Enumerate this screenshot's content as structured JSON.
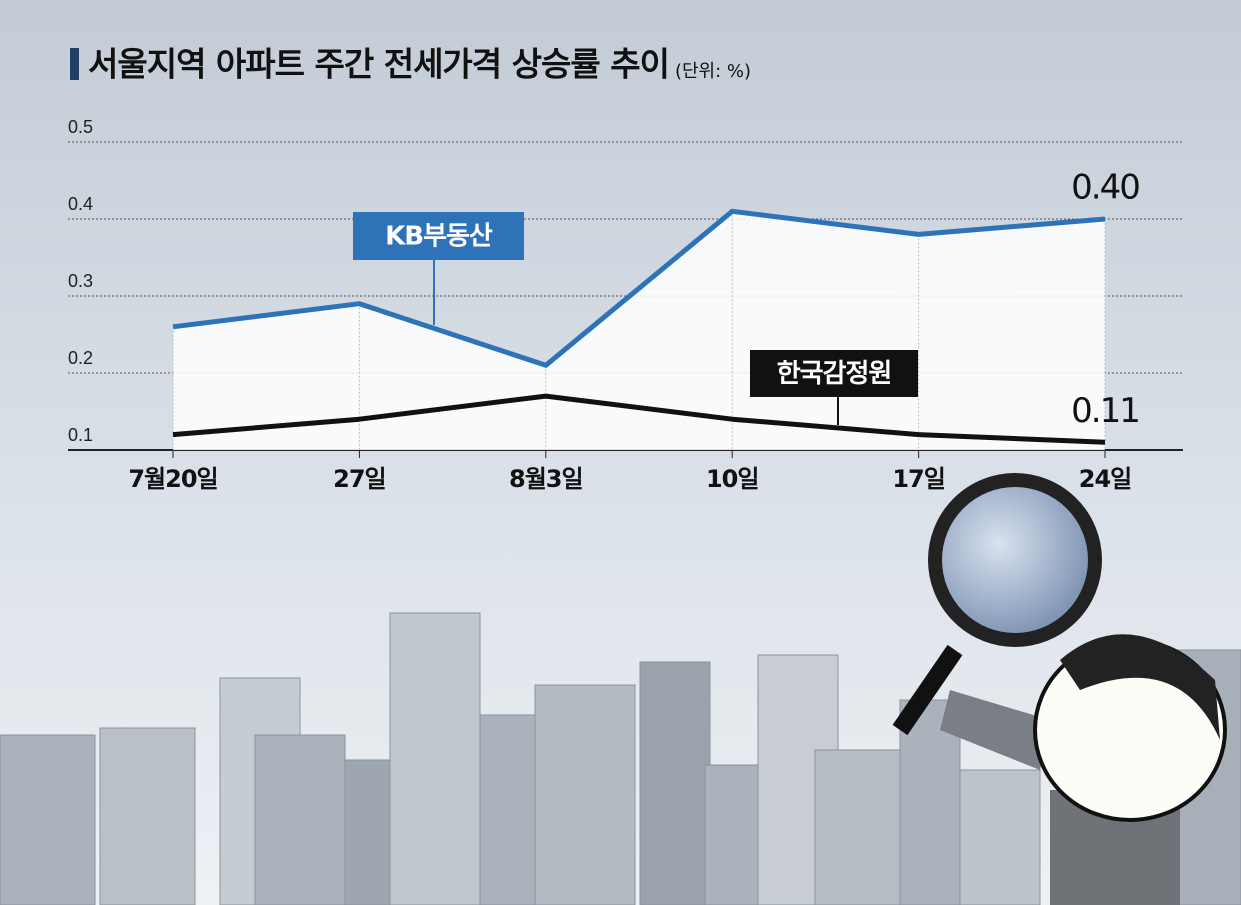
{
  "chart_data": {
    "type": "line",
    "title": "서울지역 아파트 주간 전세가격 상승률 추이",
    "subtitle": "(단위: %)",
    "categories": [
      "7월20일",
      "27일",
      "8월3일",
      "10일",
      "17일",
      "24일"
    ],
    "series": [
      {
        "name": "KB부동산",
        "color": "#2e73b8",
        "values": [
          0.26,
          0.29,
          0.21,
          0.41,
          0.38,
          0.4
        ],
        "value_labels": [
          null,
          null,
          null,
          null,
          null,
          "0.40"
        ]
      },
      {
        "name": "한국감정원",
        "color": "#111111",
        "values": [
          0.12,
          0.14,
          0.17,
          0.14,
          0.12,
          0.11
        ],
        "value_labels": [
          null,
          null,
          null,
          null,
          null,
          "0.11"
        ]
      }
    ],
    "ylim": [
      0.1,
      0.5
    ],
    "yticks": [
      0.1,
      0.2,
      0.3,
      0.4,
      0.5
    ],
    "grid": true
  }
}
